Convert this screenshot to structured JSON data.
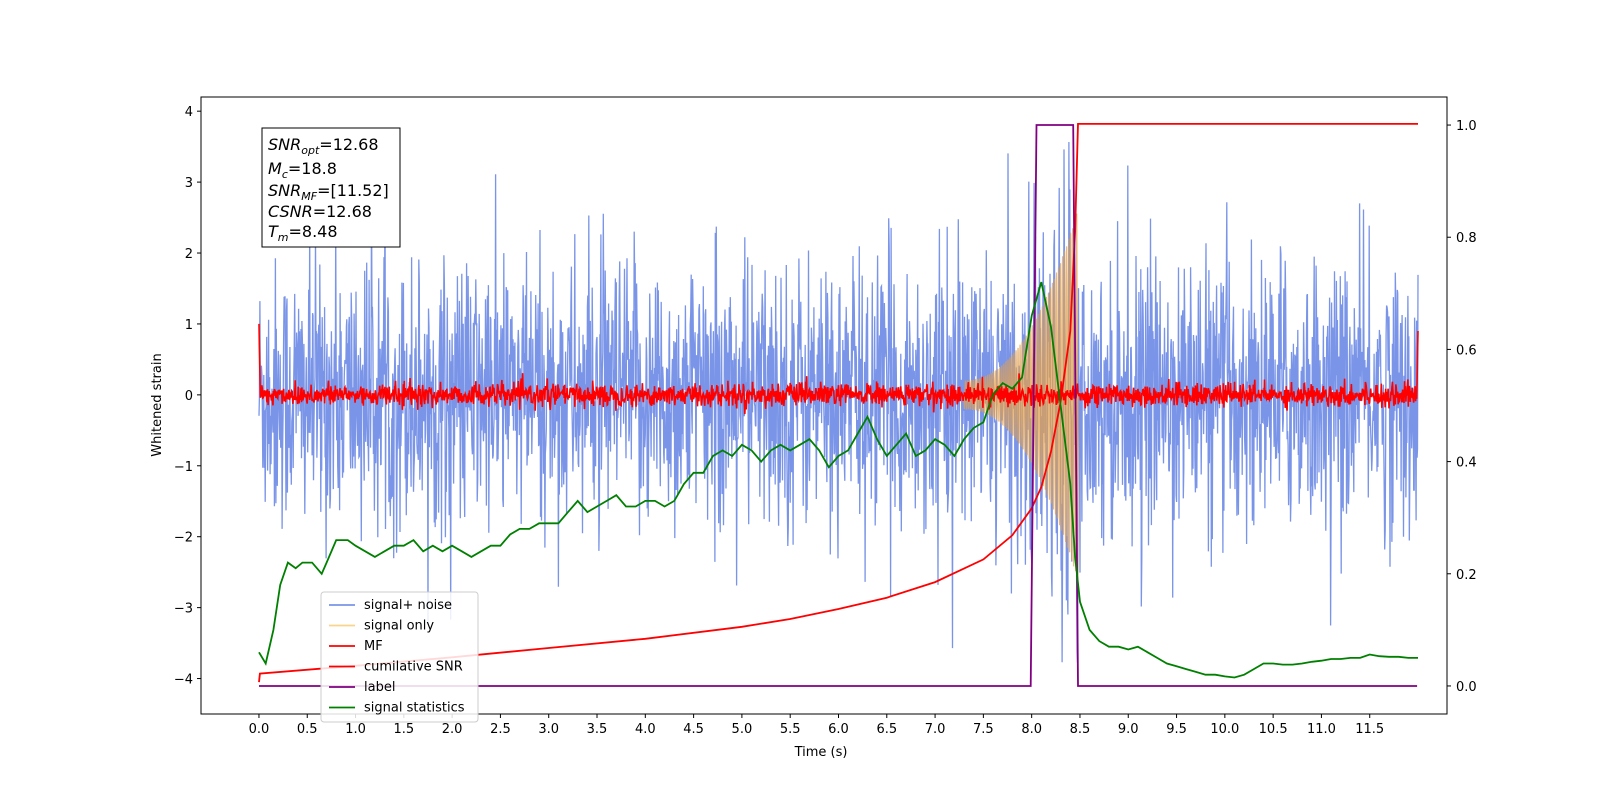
{
  "chart_data": {
    "type": "line",
    "xlabel": "Time (s)",
    "ylabel": "Whitened strain",
    "xlim": [
      -0.6,
      12.3
    ],
    "ylim": [
      -4.5,
      4.2
    ],
    "ylim_right": [
      -0.05,
      1.05
    ],
    "x_ticks": [
      "0.0",
      "0.5",
      "1.0",
      "1.5",
      "2.0",
      "2.5",
      "3.0",
      "3.5",
      "4.0",
      "4.5",
      "5.0",
      "5.5",
      "6.0",
      "6.5",
      "7.0",
      "7.5",
      "8.0",
      "8.5",
      "9.0",
      "9.5",
      "10.0",
      "10.5",
      "11.0",
      "11.5"
    ],
    "y_ticks_left": [
      "4",
      "3",
      "2",
      "1",
      "0",
      "−1",
      "−2",
      "−3",
      "−4"
    ],
    "y_ticks_right": [
      "1.0",
      "0.8",
      "0.6",
      "0.4",
      "0.2",
      "0.0"
    ],
    "annotation": {
      "snr_opt": {
        "sym": "SNR",
        "sub": "opt",
        "val": "=12.68"
      },
      "mc": {
        "sym": "M",
        "sub": "c",
        "val": "=18.8"
      },
      "snr_mf": {
        "sym": "SNR",
        "sub": "MF",
        "val": "=[11.52]"
      },
      "csnr": {
        "sym": "CSNR",
        "sub": "",
        "val": "=12.68"
      },
      "tm": {
        "sym": "T",
        "sub": "m",
        "val": "=8.48"
      }
    },
    "legend": {
      "placement": "lower-left",
      "entries": [
        {
          "label": "signal+ noise",
          "color": "#7a95e8"
        },
        {
          "label": "signal only",
          "color": "#f9d48a"
        },
        {
          "label": "MF",
          "color": "#ff0000"
        },
        {
          "label": "cumilative SNR",
          "color": "#ff0000"
        },
        {
          "label": "label",
          "color": "#800080"
        },
        {
          "label": "signal statistics",
          "color": "#008000"
        }
      ]
    },
    "series": [
      {
        "name": "signal+ noise",
        "axis": "left",
        "color": "#7a95e8",
        "description": "white Gaussian noise plus chirp, t in [0, 12], amplitude about ±2.5 with spikes to ±4"
      },
      {
        "name": "signal only",
        "axis": "left",
        "color": "#f9d48a",
        "description": "chirp waveform growing from 7.3 s, peak amplitude about 2.4 at 8.43 s"
      },
      {
        "name": "MF",
        "axis": "left",
        "color": "#ff0000",
        "description": "matched filter output, near 0 with noise ±0.2, edges at 1.0 and 0.9"
      },
      {
        "name": "cumilative SNR",
        "axis": "left",
        "x": [
          0.0,
          0.01,
          1.0,
          2.0,
          3.0,
          4.0,
          5.0,
          5.5,
          6.0,
          6.5,
          7.0,
          7.5,
          7.8,
          8.0,
          8.1,
          8.2,
          8.3,
          8.4,
          8.45,
          8.48,
          12.0
        ],
        "y": [
          -4.05,
          -3.93,
          -3.82,
          -3.7,
          -3.57,
          -3.44,
          -3.27,
          -3.16,
          -3.02,
          -2.86,
          -2.64,
          -2.32,
          -1.98,
          -1.6,
          -1.3,
          -0.8,
          -0.1,
          0.9,
          2.3,
          3.82,
          3.82
        ]
      },
      {
        "name": "label",
        "axis": "right",
        "x": [
          0.0,
          7.99,
          8.05,
          8.43,
          8.48,
          11.99
        ],
        "y": [
          0.0,
          0.0,
          1.0,
          1.0,
          0.0,
          0.0
        ]
      },
      {
        "name": "signal statistics",
        "axis": "right",
        "x": [
          0.0,
          0.07,
          0.15,
          0.22,
          0.3,
          0.38,
          0.45,
          0.55,
          0.65,
          0.7,
          0.8,
          0.85,
          0.92,
          1.0,
          1.1,
          1.2,
          1.3,
          1.4,
          1.5,
          1.6,
          1.7,
          1.8,
          1.9,
          2.0,
          2.1,
          2.2,
          2.3,
          2.4,
          2.5,
          2.6,
          2.7,
          2.8,
          2.9,
          3.0,
          3.1,
          3.2,
          3.3,
          3.4,
          3.5,
          3.6,
          3.7,
          3.8,
          3.9,
          4.0,
          4.1,
          4.2,
          4.3,
          4.4,
          4.5,
          4.6,
          4.7,
          4.8,
          4.9,
          5.0,
          5.1,
          5.2,
          5.3,
          5.4,
          5.5,
          5.6,
          5.7,
          5.8,
          5.9,
          6.0,
          6.1,
          6.2,
          6.3,
          6.4,
          6.5,
          6.6,
          6.7,
          6.8,
          6.9,
          7.0,
          7.1,
          7.2,
          7.3,
          7.4,
          7.5,
          7.6,
          7.7,
          7.8,
          7.9,
          8.0,
          8.1,
          8.2,
          8.3,
          8.4,
          8.45,
          8.5,
          8.6,
          8.7,
          8.8,
          8.9,
          9.0,
          9.1,
          9.2,
          9.3,
          9.4,
          9.5,
          9.6,
          9.7,
          9.8,
          9.9,
          10.0,
          10.1,
          10.2,
          10.3,
          10.4,
          10.5,
          10.6,
          10.7,
          10.8,
          10.9,
          11.0,
          11.1,
          11.2,
          11.3,
          11.4,
          11.5,
          11.6,
          11.7,
          11.8,
          11.9,
          12.0
        ],
        "y": [
          0.06,
          0.04,
          0.1,
          0.18,
          0.22,
          0.21,
          0.22,
          0.22,
          0.2,
          0.22,
          0.26,
          0.26,
          0.26,
          0.25,
          0.24,
          0.23,
          0.24,
          0.25,
          0.25,
          0.26,
          0.24,
          0.25,
          0.24,
          0.25,
          0.24,
          0.23,
          0.24,
          0.25,
          0.25,
          0.27,
          0.28,
          0.28,
          0.29,
          0.29,
          0.29,
          0.31,
          0.33,
          0.31,
          0.32,
          0.33,
          0.34,
          0.32,
          0.32,
          0.33,
          0.33,
          0.32,
          0.33,
          0.36,
          0.38,
          0.38,
          0.41,
          0.42,
          0.41,
          0.43,
          0.42,
          0.4,
          0.42,
          0.43,
          0.42,
          0.43,
          0.44,
          0.42,
          0.39,
          0.41,
          0.42,
          0.45,
          0.48,
          0.44,
          0.41,
          0.43,
          0.45,
          0.41,
          0.42,
          0.44,
          0.43,
          0.41,
          0.44,
          0.46,
          0.47,
          0.52,
          0.54,
          0.53,
          0.55,
          0.66,
          0.72,
          0.64,
          0.5,
          0.36,
          0.23,
          0.15,
          0.1,
          0.08,
          0.07,
          0.07,
          0.065,
          0.07,
          0.06,
          0.05,
          0.04,
          0.035,
          0.03,
          0.025,
          0.02,
          0.02,
          0.017,
          0.015,
          0.02,
          0.03,
          0.04,
          0.04,
          0.038,
          0.038,
          0.04,
          0.043,
          0.045,
          0.048,
          0.048,
          0.05,
          0.05,
          0.056,
          0.053,
          0.052,
          0.052,
          0.05,
          0.05
        ]
      }
    ]
  }
}
